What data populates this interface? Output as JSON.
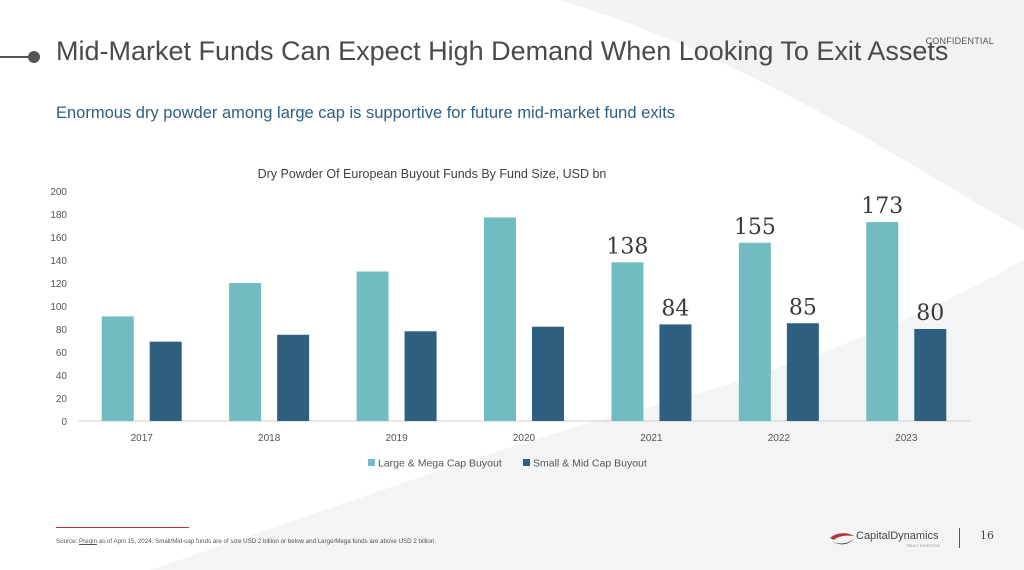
{
  "header": {
    "confidential": "CONFIDENTIAL",
    "title": "Mid-Market Funds Can Expect High Demand When Looking To Exit Assets",
    "subtitle": "Enormous dry powder among large cap is supportive for future mid-market fund exits"
  },
  "colors": {
    "large": "#72bcc1",
    "small": "#2e5f7f",
    "accent": "#b5323c"
  },
  "chart_data": {
    "type": "bar",
    "title": "Dry Powder Of European Buyout Funds By Fund Size, USD bn",
    "categories": [
      "2017",
      "2018",
      "2019",
      "2020",
      "2021",
      "2022",
      "2023"
    ],
    "series": [
      {
        "name": "Large & Mega Cap Buyout",
        "values": [
          91,
          120,
          130,
          177,
          138,
          155,
          173
        ]
      },
      {
        "name": "Small & Mid Cap Buyout",
        "values": [
          69,
          75,
          78,
          82,
          84,
          85,
          80
        ]
      }
    ],
    "data_labels": {
      "large": [
        "",
        "",
        "",
        "",
        "138",
        "155",
        "173"
      ],
      "small": [
        "",
        "",
        "",
        "",
        "84",
        "85",
        "80"
      ]
    },
    "ylim": [
      0,
      200
    ],
    "yticks": [
      0,
      20,
      40,
      60,
      80,
      100,
      120,
      140,
      160,
      180,
      200
    ],
    "grid": false,
    "legend": "bottom"
  },
  "footer": {
    "source_prefix": "Source: ",
    "source_link": "Preqin",
    "source_rest": " as of April 15, 2024. Small/Mid-cap funds are of size USD 2 billion or below and Large/Mega funds are above USD 2 billion.",
    "logo_text": "CapitalDynamics",
    "logo_tagline": "TRULY INVESTED",
    "page_number": "16"
  }
}
